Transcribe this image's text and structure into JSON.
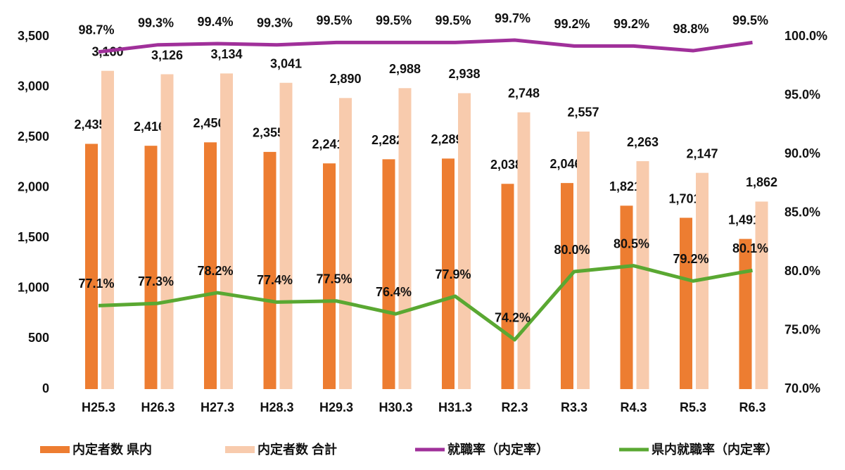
{
  "chart_data": {
    "type": "bar_line",
    "categories": [
      "H25.3",
      "H26.3",
      "H27.3",
      "H28.3",
      "H29.3",
      "H30.3",
      "H31.3",
      "R2.3",
      "R3.3",
      "R4.3",
      "R5.3",
      "R6.3"
    ],
    "series": [
      {
        "name": "内定者数 県内",
        "color": "#ed7d31",
        "type": "bar",
        "values": [
          2435,
          2416,
          2450,
          2355,
          2241,
          2282,
          2289,
          2038,
          2046,
          1821,
          1701,
          1491
        ],
        "value_labels": [
          "2,435",
          "2,416",
          "2,450",
          "2,355",
          "2,241",
          "2,282",
          "2,289",
          "2,038",
          "2,046",
          "1,821",
          "1,701",
          "1,491"
        ]
      },
      {
        "name": "内定者数 合計",
        "color": "#f8cbad",
        "type": "bar",
        "values": [
          3160,
          3126,
          3134,
          3041,
          2890,
          2988,
          2938,
          2748,
          2557,
          2263,
          2147,
          1862
        ],
        "value_labels": [
          "3,160",
          "3,126",
          "3,134",
          "3,041",
          "2,890",
          "2,988",
          "2,938",
          "2,748",
          "2,557",
          "2,263",
          "2,147",
          "1,862"
        ]
      },
      {
        "name": "就職率（内定率）",
        "color": "#a0309a",
        "type": "line",
        "axis": "y2",
        "values": [
          98.7,
          99.3,
          99.4,
          99.3,
          99.5,
          99.5,
          99.5,
          99.7,
          99.2,
          99.2,
          98.8,
          99.5
        ],
        "value_labels": [
          "98.7%",
          "99.3%",
          "99.4%",
          "99.3%",
          "99.5%",
          "99.5%",
          "99.5%",
          "99.7%",
          "99.2%",
          "99.2%",
          "98.8%",
          "99.5%"
        ]
      },
      {
        "name": "県内就職率（内定率）",
        "color": "#5aa832",
        "type": "line",
        "axis": "y2",
        "values": [
          77.1,
          77.3,
          78.2,
          77.4,
          77.5,
          76.4,
          77.9,
          74.2,
          80.0,
          80.5,
          79.2,
          80.1
        ],
        "value_labels": [
          "77.1%",
          "77.3%",
          "78.2%",
          "77.4%",
          "77.5%",
          "76.4%",
          "77.9%",
          "74.2%",
          "80.0%",
          "80.5%",
          "79.2%",
          "80.1%"
        ]
      }
    ],
    "ylim": [
      0,
      3500
    ],
    "yticks": [
      0,
      500,
      {
        "value": 1000,
        "label": "1,000"
      },
      {
        "value": 1500,
        "label": "1,500"
      },
      {
        "value": 2000,
        "label": "2,000"
      },
      {
        "value": 2500,
        "label": "2,500"
      },
      {
        "value": 3000,
        "label": "3,000"
      },
      {
        "value": 3500,
        "label": "3,500"
      }
    ],
    "y2lim": [
      70,
      100
    ],
    "y2ticks": [
      {
        "value": 70,
        "label": "70.0%"
      },
      {
        "value": 75,
        "label": "75.0%"
      },
      {
        "value": 80,
        "label": "80.0%"
      },
      {
        "value": 85,
        "label": "85.0%"
      },
      {
        "value": 90,
        "label": "90.0%"
      },
      {
        "value": 95,
        "label": "95.0%"
      },
      {
        "value": 100,
        "label": "100.0%"
      }
    ],
    "grid": false,
    "legend": "bottom"
  }
}
